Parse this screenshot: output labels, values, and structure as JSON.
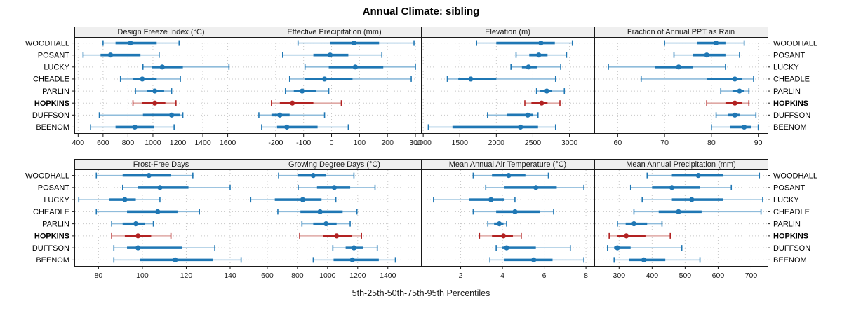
{
  "title": "Annual Climate: sibling",
  "caption": "5th-25th-50th-75th-95th Percentiles",
  "stations": [
    "WOODHALL",
    "POSANT",
    "LUCKY",
    "CHEADLE",
    "PARLIN",
    "HOPKINS",
    "DUFFSON",
    "BEENOM"
  ],
  "highlight_station": "HOPKINS",
  "colors": {
    "normal": "#1f77b4",
    "normal_light": "#8fbcdb",
    "highlight": "#b22222",
    "highlight_light": "#dfa8a4",
    "header_bg": "#efefef",
    "grid": "#c8c8c8",
    "border": "#1a1a1a",
    "text": "#1a1a1a"
  },
  "chart_data": [
    {
      "type": "percentile-dotplot",
      "slug": "design-freeze-index",
      "title": "Design Freeze Index (°C)",
      "xlim": [
        370,
        1760
      ],
      "xticks": [
        400,
        600,
        800,
        1000,
        1200,
        1400,
        1600
      ],
      "percentiles": {
        "WOODHALL": [
          600,
          700,
          820,
          1030,
          1210
        ],
        "POSANT": [
          440,
          580,
          660,
          900,
          1050
        ],
        "LUCKY": [
          920,
          990,
          1075,
          1240,
          1610
        ],
        "CHEADLE": [
          740,
          840,
          915,
          1030,
          1220
        ],
        "PARLIN": [
          860,
          950,
          1015,
          1090,
          1150
        ],
        "HOPKINS": [
          840,
          910,
          1015,
          1100,
          1185
        ],
        "DUFFSON": [
          570,
          920,
          1150,
          1215,
          1240
        ],
        "BEENOM": [
          500,
          700,
          855,
          1010,
          1170
        ]
      }
    },
    {
      "type": "percentile-dotplot",
      "slug": "effective-precipitation",
      "title": "Effective Precipitation (mm)",
      "xlim": [
        -300,
        320
      ],
      "xticks": [
        -200,
        -100,
        0,
        100,
        200,
        300
      ],
      "percentiles": {
        "WOODHALL": [
          -120,
          -5,
          80,
          170,
          295
        ],
        "POSANT": [
          -175,
          -65,
          -5,
          60,
          180
        ],
        "LUCKY": [
          -95,
          -10,
          85,
          185,
          300
        ],
        "CHEADLE": [
          -150,
          -95,
          -25,
          75,
          285
        ],
        "PARLIN": [
          -165,
          -135,
          -105,
          -55,
          -10
        ],
        "HOPKINS": [
          -215,
          -185,
          -140,
          -65,
          35
        ],
        "DUFFSON": [
          -260,
          -215,
          -185,
          -150,
          -25
        ],
        "BEENOM": [
          -250,
          -195,
          -160,
          -50,
          60
        ]
      }
    },
    {
      "type": "percentile-dotplot",
      "slug": "elevation",
      "title": "Elevation (m)",
      "xlim": [
        970,
        3340
      ],
      "xticks": [
        1000,
        1500,
        2000,
        2500,
        3000
      ],
      "percentiles": {
        "WOODHALL": [
          1730,
          2000,
          2610,
          2800,
          3040
        ],
        "POSANT": [
          2270,
          2450,
          2580,
          2700,
          2960
        ],
        "LUCKY": [
          2200,
          2350,
          2440,
          2560,
          2880
        ],
        "CHEADLE": [
          1330,
          1480,
          1650,
          2000,
          2810
        ],
        "PARLIN": [
          2550,
          2600,
          2690,
          2760,
          2930
        ],
        "HOPKINS": [
          2390,
          2480,
          2620,
          2700,
          2870
        ],
        "DUFFSON": [
          1880,
          2150,
          2430,
          2500,
          2570
        ],
        "BEENOM": [
          1070,
          1400,
          2330,
          2570,
          2810
        ]
      }
    },
    {
      "type": "percentile-dotplot",
      "slug": "fraction-of-annual-ppt-as-rain",
      "title": "Fraction of Annual PPT as Rain",
      "xlim": [
        55,
        92
      ],
      "xticks": [
        60,
        70,
        80,
        90
      ],
      "percentiles": {
        "WOODHALL": [
          70,
          77,
          81,
          83,
          87
        ],
        "POSANT": [
          72,
          76,
          79,
          83,
          86
        ],
        "LUCKY": [
          58,
          68,
          73,
          76,
          83
        ],
        "CHEADLE": [
          65,
          79,
          85,
          86.5,
          89
        ],
        "PARLIN": [
          82,
          84.5,
          86,
          87,
          88
        ],
        "HOPKINS": [
          79,
          83,
          85,
          86.5,
          88
        ],
        "DUFFSON": [
          81,
          83.5,
          85,
          86,
          89.5
        ],
        "BEENOM": [
          80,
          84,
          87,
          88.5,
          90
        ]
      }
    },
    {
      "type": "percentile-dotplot",
      "slug": "frost-free-days",
      "title": "Frost-Free Days",
      "xlim": [
        69,
        148
      ],
      "xticks": [
        80,
        100,
        120,
        140
      ],
      "percentiles": {
        "WOODHALL": [
          79,
          91,
          103,
          113,
          123
        ],
        "POSANT": [
          91,
          98,
          108,
          121,
          140
        ],
        "LUCKY": [
          71,
          85,
          92,
          97,
          108
        ],
        "CHEADLE": [
          79,
          93,
          107,
          116,
          126
        ],
        "PARLIN": [
          86,
          91,
          97,
          101,
          105
        ],
        "HOPKINS": [
          86,
          92,
          98,
          104,
          113
        ],
        "DUFFSON": [
          87,
          93,
          98,
          118,
          133
        ],
        "BEENOM": [
          87,
          99,
          115,
          132,
          145
        ]
      }
    },
    {
      "type": "percentile-dotplot",
      "slug": "growing-degree-days",
      "title": "Growing Degree Days (°C)",
      "xlim": [
        470,
        1620
      ],
      "xticks": [
        600,
        800,
        1000,
        1200,
        1400
      ],
      "percentiles": {
        "WOODHALL": [
          675,
          800,
          905,
          990,
          1175
        ],
        "POSANT": [
          805,
          930,
          1045,
          1150,
          1315
        ],
        "LUCKY": [
          490,
          650,
          835,
          960,
          1055
        ],
        "CHEADLE": [
          670,
          820,
          950,
          1100,
          1195
        ],
        "PARLIN": [
          830,
          905,
          990,
          1060,
          1150
        ],
        "HOPKINS": [
          815,
          970,
          1060,
          1160,
          1225
        ],
        "DUFFSON": [
          1035,
          1120,
          1175,
          1235,
          1330
        ],
        "BEENOM": [
          905,
          1040,
          1165,
          1340,
          1450
        ]
      }
    },
    {
      "type": "percentile-dotplot",
      "slug": "mean-annual-air-temperature",
      "title": "Mean Annual Air Temperature (°C)",
      "xlim": [
        0.1,
        8.4
      ],
      "xticks": [
        2,
        4,
        6,
        8
      ],
      "percentiles": {
        "WOODHALL": [
          2.6,
          3.5,
          4.3,
          5.1,
          6.2
        ],
        "POSANT": [
          3.2,
          4.1,
          5.6,
          6.6,
          7.9
        ],
        "LUCKY": [
          0.7,
          2.4,
          3.45,
          4.1,
          4.6
        ],
        "CHEADLE": [
          2.6,
          3.7,
          4.6,
          5.8,
          6.45
        ],
        "PARLIN": [
          3.3,
          3.6,
          3.85,
          4.05,
          4.2
        ],
        "HOPKINS": [
          2.9,
          3.5,
          4.05,
          4.5,
          4.9
        ],
        "DUFFSON": [
          3.7,
          4.0,
          4.2,
          5.6,
          7.25
        ],
        "BEENOM": [
          3.4,
          4.1,
          5.5,
          6.4,
          7.9
        ]
      }
    },
    {
      "type": "percentile-dotplot",
      "slug": "mean-annual-precipitation",
      "title": "Mean Annual Precipitation (mm)",
      "xlim": [
        225,
        750
      ],
      "xticks": [
        300,
        400,
        500,
        600,
        700
      ],
      "percentiles": {
        "WOODHALL": [
          385,
          460,
          540,
          615,
          725
        ],
        "POSANT": [
          335,
          400,
          460,
          545,
          640
        ],
        "LUCKY": [
          370,
          460,
          520,
          615,
          735
        ],
        "CHEADLE": [
          345,
          420,
          480,
          550,
          730
        ],
        "PARLIN": [
          295,
          320,
          345,
          385,
          430
        ],
        "HOPKINS": [
          270,
          295,
          322,
          380,
          455
        ],
        "DUFFSON": [
          265,
          285,
          295,
          335,
          490
        ],
        "BEENOM": [
          285,
          330,
          375,
          440,
          545
        ]
      }
    }
  ]
}
